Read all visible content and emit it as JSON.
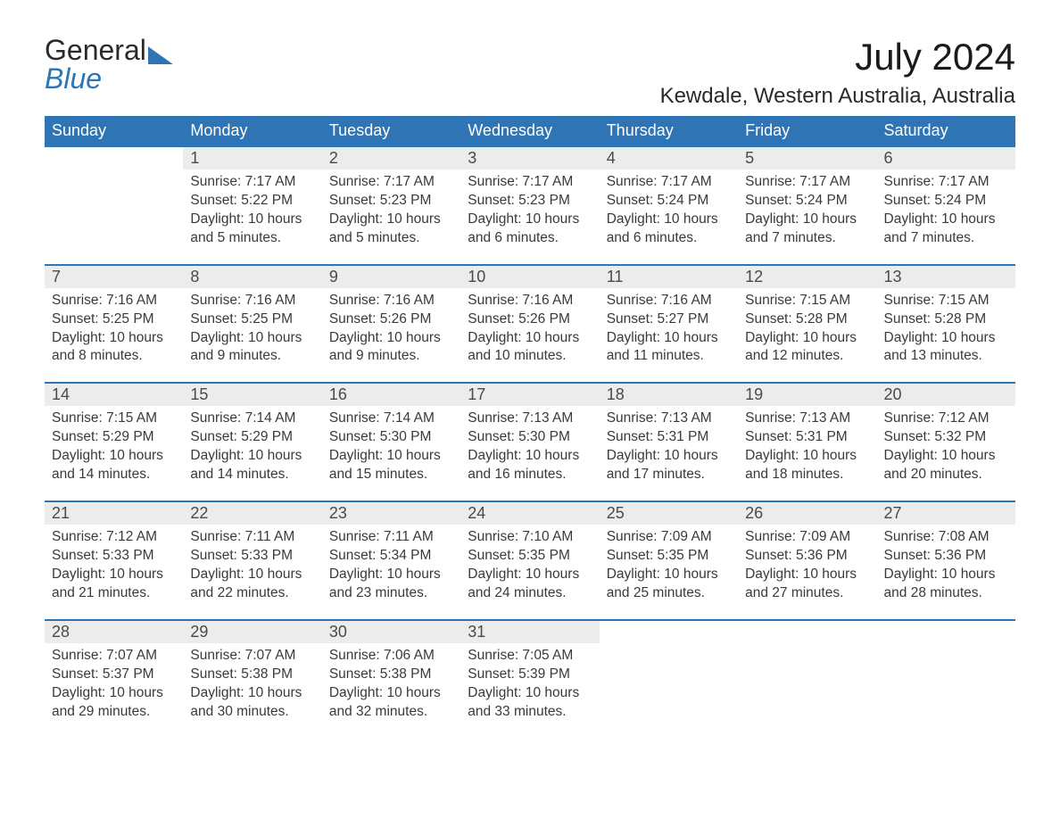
{
  "brand": {
    "line1": "General",
    "line2": "Blue"
  },
  "title": "July 2024",
  "location": "Kewdale, Western Australia, Australia",
  "colors": {
    "header_bg": "#2f74b5",
    "header_text": "#ffffff",
    "daynum_bg": "#ececec",
    "row_border": "#2f74b5",
    "body_text": "#3a3a3a",
    "page_bg": "#ffffff"
  },
  "fonts": {
    "title_size_pt": 32,
    "location_size_pt": 18,
    "dayhead_size_pt": 14,
    "body_size_pt": 12
  },
  "day_headers": [
    "Sunday",
    "Monday",
    "Tuesday",
    "Wednesday",
    "Thursday",
    "Friday",
    "Saturday"
  ],
  "weeks": [
    [
      null,
      {
        "n": "1",
        "sr": "Sunrise: 7:17 AM",
        "ss": "Sunset: 5:22 PM",
        "dl": "Daylight: 10 hours and 5 minutes."
      },
      {
        "n": "2",
        "sr": "Sunrise: 7:17 AM",
        "ss": "Sunset: 5:23 PM",
        "dl": "Daylight: 10 hours and 5 minutes."
      },
      {
        "n": "3",
        "sr": "Sunrise: 7:17 AM",
        "ss": "Sunset: 5:23 PM",
        "dl": "Daylight: 10 hours and 6 minutes."
      },
      {
        "n": "4",
        "sr": "Sunrise: 7:17 AM",
        "ss": "Sunset: 5:24 PM",
        "dl": "Daylight: 10 hours and 6 minutes."
      },
      {
        "n": "5",
        "sr": "Sunrise: 7:17 AM",
        "ss": "Sunset: 5:24 PM",
        "dl": "Daylight: 10 hours and 7 minutes."
      },
      {
        "n": "6",
        "sr": "Sunrise: 7:17 AM",
        "ss": "Sunset: 5:24 PM",
        "dl": "Daylight: 10 hours and 7 minutes."
      }
    ],
    [
      {
        "n": "7",
        "sr": "Sunrise: 7:16 AM",
        "ss": "Sunset: 5:25 PM",
        "dl": "Daylight: 10 hours and 8 minutes."
      },
      {
        "n": "8",
        "sr": "Sunrise: 7:16 AM",
        "ss": "Sunset: 5:25 PM",
        "dl": "Daylight: 10 hours and 9 minutes."
      },
      {
        "n": "9",
        "sr": "Sunrise: 7:16 AM",
        "ss": "Sunset: 5:26 PM",
        "dl": "Daylight: 10 hours and 9 minutes."
      },
      {
        "n": "10",
        "sr": "Sunrise: 7:16 AM",
        "ss": "Sunset: 5:26 PM",
        "dl": "Daylight: 10 hours and 10 minutes."
      },
      {
        "n": "11",
        "sr": "Sunrise: 7:16 AM",
        "ss": "Sunset: 5:27 PM",
        "dl": "Daylight: 10 hours and 11 minutes."
      },
      {
        "n": "12",
        "sr": "Sunrise: 7:15 AM",
        "ss": "Sunset: 5:28 PM",
        "dl": "Daylight: 10 hours and 12 minutes."
      },
      {
        "n": "13",
        "sr": "Sunrise: 7:15 AM",
        "ss": "Sunset: 5:28 PM",
        "dl": "Daylight: 10 hours and 13 minutes."
      }
    ],
    [
      {
        "n": "14",
        "sr": "Sunrise: 7:15 AM",
        "ss": "Sunset: 5:29 PM",
        "dl": "Daylight: 10 hours and 14 minutes."
      },
      {
        "n": "15",
        "sr": "Sunrise: 7:14 AM",
        "ss": "Sunset: 5:29 PM",
        "dl": "Daylight: 10 hours and 14 minutes."
      },
      {
        "n": "16",
        "sr": "Sunrise: 7:14 AM",
        "ss": "Sunset: 5:30 PM",
        "dl": "Daylight: 10 hours and 15 minutes."
      },
      {
        "n": "17",
        "sr": "Sunrise: 7:13 AM",
        "ss": "Sunset: 5:30 PM",
        "dl": "Daylight: 10 hours and 16 minutes."
      },
      {
        "n": "18",
        "sr": "Sunrise: 7:13 AM",
        "ss": "Sunset: 5:31 PM",
        "dl": "Daylight: 10 hours and 17 minutes."
      },
      {
        "n": "19",
        "sr": "Sunrise: 7:13 AM",
        "ss": "Sunset: 5:31 PM",
        "dl": "Daylight: 10 hours and 18 minutes."
      },
      {
        "n": "20",
        "sr": "Sunrise: 7:12 AM",
        "ss": "Sunset: 5:32 PM",
        "dl": "Daylight: 10 hours and 20 minutes."
      }
    ],
    [
      {
        "n": "21",
        "sr": "Sunrise: 7:12 AM",
        "ss": "Sunset: 5:33 PM",
        "dl": "Daylight: 10 hours and 21 minutes."
      },
      {
        "n": "22",
        "sr": "Sunrise: 7:11 AM",
        "ss": "Sunset: 5:33 PM",
        "dl": "Daylight: 10 hours and 22 minutes."
      },
      {
        "n": "23",
        "sr": "Sunrise: 7:11 AM",
        "ss": "Sunset: 5:34 PM",
        "dl": "Daylight: 10 hours and 23 minutes."
      },
      {
        "n": "24",
        "sr": "Sunrise: 7:10 AM",
        "ss": "Sunset: 5:35 PM",
        "dl": "Daylight: 10 hours and 24 minutes."
      },
      {
        "n": "25",
        "sr": "Sunrise: 7:09 AM",
        "ss": "Sunset: 5:35 PM",
        "dl": "Daylight: 10 hours and 25 minutes."
      },
      {
        "n": "26",
        "sr": "Sunrise: 7:09 AM",
        "ss": "Sunset: 5:36 PM",
        "dl": "Daylight: 10 hours and 27 minutes."
      },
      {
        "n": "27",
        "sr": "Sunrise: 7:08 AM",
        "ss": "Sunset: 5:36 PM",
        "dl": "Daylight: 10 hours and 28 minutes."
      }
    ],
    [
      {
        "n": "28",
        "sr": "Sunrise: 7:07 AM",
        "ss": "Sunset: 5:37 PM",
        "dl": "Daylight: 10 hours and 29 minutes."
      },
      {
        "n": "29",
        "sr": "Sunrise: 7:07 AM",
        "ss": "Sunset: 5:38 PM",
        "dl": "Daylight: 10 hours and 30 minutes."
      },
      {
        "n": "30",
        "sr": "Sunrise: 7:06 AM",
        "ss": "Sunset: 5:38 PM",
        "dl": "Daylight: 10 hours and 32 minutes."
      },
      {
        "n": "31",
        "sr": "Sunrise: 7:05 AM",
        "ss": "Sunset: 5:39 PM",
        "dl": "Daylight: 10 hours and 33 minutes."
      },
      null,
      null,
      null
    ]
  ]
}
